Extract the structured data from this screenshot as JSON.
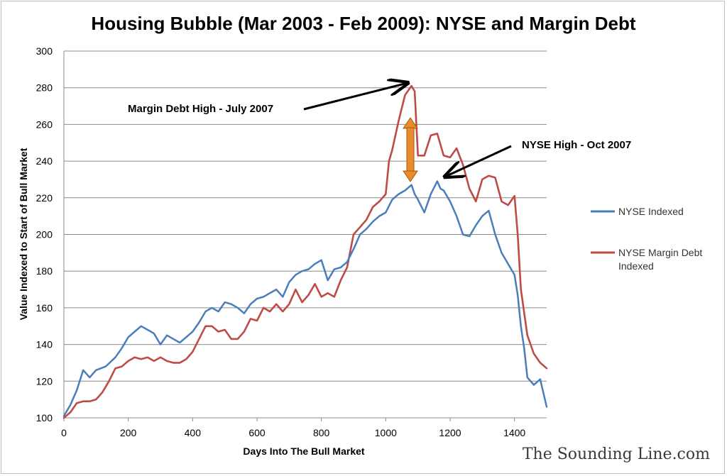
{
  "chart_data": {
    "type": "line",
    "title": "Housing Bubble (Mar 2003 - Feb 2009): NYSE and Margin Debt",
    "xlabel": "Days Into The Bull Market",
    "ylabel": "Value Indexed to Start of Bull Market",
    "xlim": [
      0,
      1500
    ],
    "ylim": [
      100,
      300
    ],
    "x_ticks": [
      0,
      200,
      400,
      600,
      800,
      1000,
      1200,
      1400
    ],
    "y_ticks": [
      100,
      120,
      140,
      160,
      180,
      200,
      220,
      240,
      260,
      280,
      300
    ],
    "grid": "horizontal",
    "legend_position": "right",
    "series": [
      {
        "name": "NYSE Indexed",
        "color": "#4a7ebb",
        "x": [
          0,
          20,
          40,
          60,
          80,
          100,
          130,
          160,
          180,
          200,
          220,
          240,
          260,
          280,
          300,
          320,
          340,
          360,
          380,
          400,
          420,
          440,
          460,
          480,
          500,
          520,
          540,
          560,
          580,
          600,
          620,
          640,
          660,
          680,
          700,
          720,
          740,
          760,
          780,
          800,
          820,
          840,
          860,
          880,
          900,
          920,
          940,
          960,
          980,
          1000,
          1020,
          1040,
          1060,
          1080,
          1090,
          1100,
          1120,
          1140,
          1160,
          1170,
          1180,
          1200,
          1220,
          1240,
          1260,
          1280,
          1300,
          1320,
          1340,
          1360,
          1380,
          1400,
          1410,
          1420,
          1430,
          1440,
          1460,
          1480,
          1500
        ],
        "y": [
          101,
          107,
          115,
          126,
          122,
          126,
          128,
          133,
          138,
          144,
          147,
          150,
          148,
          146,
          140,
          145,
          143,
          141,
          144,
          147,
          152,
          158,
          160,
          158,
          163,
          162,
          160,
          157,
          162,
          165,
          166,
          168,
          170,
          166,
          174,
          178,
          180,
          181,
          184,
          186,
          175,
          181,
          182,
          185,
          192,
          200,
          203,
          207,
          210,
          212,
          219,
          222,
          224,
          227,
          222,
          219,
          212,
          222,
          229,
          225,
          224,
          218,
          210,
          200,
          199,
          205,
          210,
          213,
          200,
          190,
          184,
          178,
          167,
          150,
          138,
          122,
          118,
          121,
          106
        ]
      },
      {
        "name": "NYSE Margin Debt Indexed",
        "color": "#be4b48",
        "x": [
          0,
          20,
          40,
          60,
          80,
          100,
          120,
          140,
          160,
          180,
          200,
          220,
          240,
          260,
          280,
          300,
          320,
          340,
          360,
          380,
          400,
          420,
          440,
          460,
          480,
          500,
          520,
          540,
          560,
          580,
          600,
          620,
          640,
          660,
          680,
          700,
          720,
          740,
          760,
          780,
          800,
          820,
          840,
          860,
          880,
          900,
          920,
          940,
          960,
          980,
          1000,
          1010,
          1020,
          1040,
          1060,
          1080,
          1090,
          1100,
          1120,
          1140,
          1160,
          1180,
          1200,
          1220,
          1240,
          1260,
          1280,
          1300,
          1320,
          1340,
          1360,
          1380,
          1400,
          1410,
          1420,
          1440,
          1460,
          1480,
          1500
        ],
        "y": [
          100,
          103,
          108,
          109,
          109,
          110,
          114,
          120,
          127,
          128,
          131,
          133,
          132,
          133,
          131,
          133,
          131,
          130,
          130,
          132,
          136,
          143,
          150,
          150,
          147,
          148,
          143,
          143,
          147,
          154,
          153,
          160,
          158,
          162,
          158,
          162,
          170,
          163,
          167,
          173,
          166,
          168,
          166,
          175,
          182,
          200,
          204,
          208,
          215,
          218,
          222,
          240,
          246,
          262,
          276,
          281,
          278,
          243,
          243,
          254,
          255,
          243,
          242,
          247,
          238,
          225,
          218,
          230,
          232,
          231,
          218,
          216,
          221,
          200,
          170,
          145,
          135,
          130,
          127
        ]
      }
    ],
    "annotations": [
      {
        "text": "Margin Debt High - July 2007"
      },
      {
        "text": "NYSE High - Oct 2007"
      }
    ],
    "watermark": "The Sounding Line.com"
  }
}
